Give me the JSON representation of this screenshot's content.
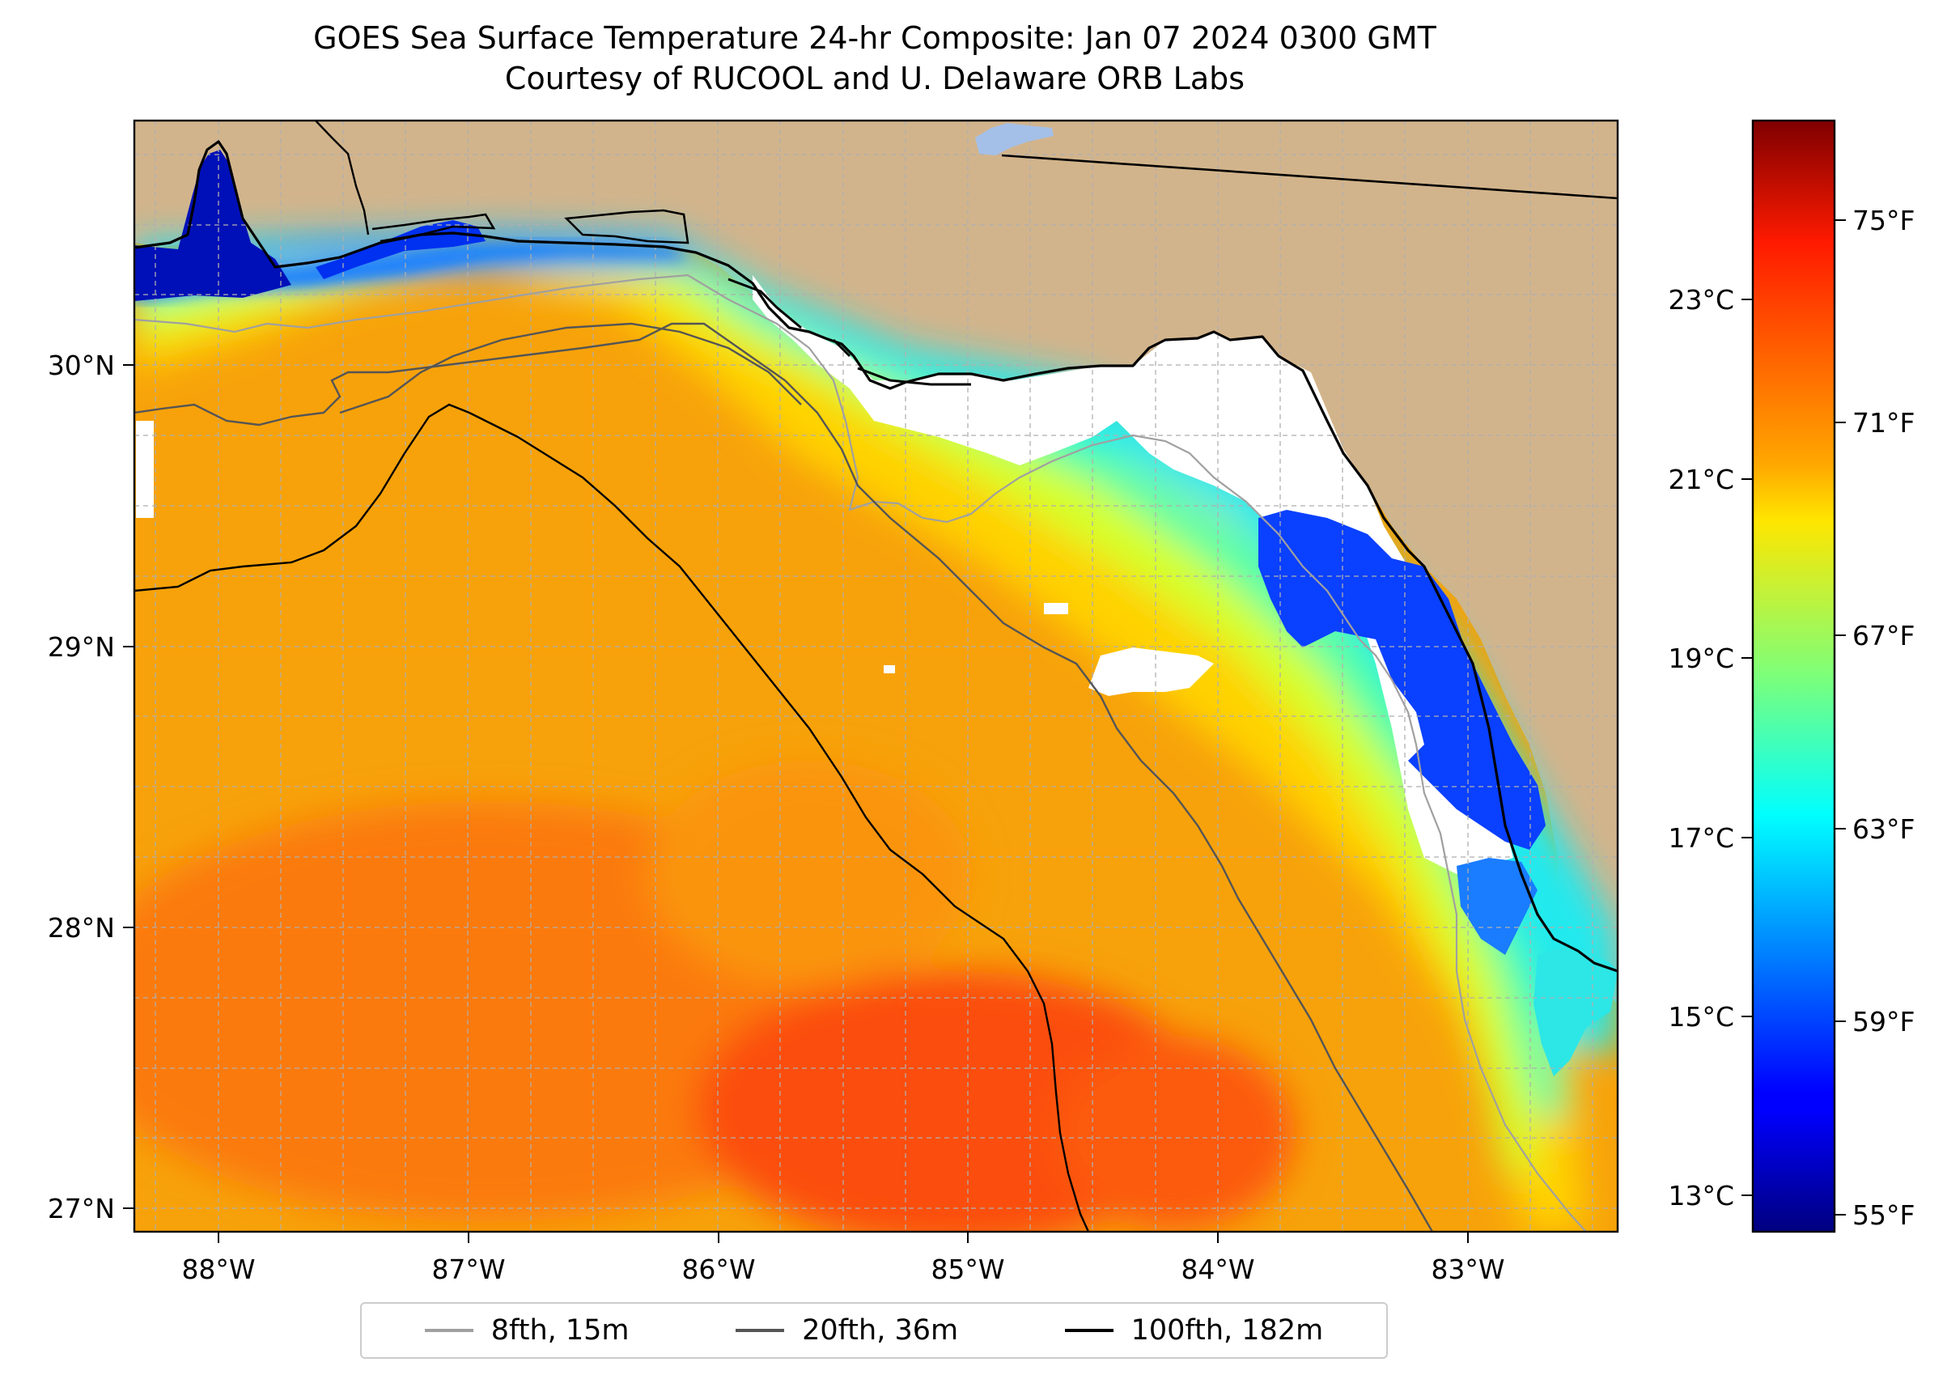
{
  "title": {
    "line1": "GOES Sea Surface Temperature 24-hr Composite: Jan 07 2024 0300 GMT",
    "line2": "Courtesy of RUCOOL and U. Delaware ORB Labs"
  },
  "axes": {
    "lon_range": [
      -88.33,
      -82.4
    ],
    "lat_range": [
      26.93,
      30.87
    ],
    "lon_ticks": [
      {
        "value": -88,
        "label": "88°W"
      },
      {
        "value": -87,
        "label": "87°W"
      },
      {
        "value": -86,
        "label": "86°W"
      },
      {
        "value": -85,
        "label": "85°W"
      },
      {
        "value": -84,
        "label": "84°W"
      },
      {
        "value": -83,
        "label": "83°W"
      }
    ],
    "lat_ticks": [
      {
        "value": 27,
        "label": "27°N"
      },
      {
        "value": 28,
        "label": "28°N"
      },
      {
        "value": 29,
        "label": "29°N"
      },
      {
        "value": 30,
        "label": "30°N"
      }
    ],
    "grid": true
  },
  "colorbar": {
    "colormap": "jet",
    "range_f": [
      54.6,
      77.6
    ],
    "celsius_ticks": [
      {
        "value": 13,
        "label": "13°C"
      },
      {
        "value": 15,
        "label": "15°C"
      },
      {
        "value": 17,
        "label": "17°C"
      },
      {
        "value": 19,
        "label": "19°C"
      },
      {
        "value": 21,
        "label": "21°C"
      },
      {
        "value": 23,
        "label": "23°C"
      }
    ],
    "fahrenheit_ticks": [
      {
        "value": 55,
        "label": "55°F"
      },
      {
        "value": 59,
        "label": "59°F"
      },
      {
        "value": 63,
        "label": "63°F"
      },
      {
        "value": 67,
        "label": "67°F"
      },
      {
        "value": 71,
        "label": "71°F"
      },
      {
        "value": 75,
        "label": "75°F"
      }
    ]
  },
  "legend": [
    {
      "label": "8fth, 15m",
      "color": "#a0a0a0"
    },
    {
      "label": "20fth, 36m",
      "color": "#555555"
    },
    {
      "label": "100fth, 182m",
      "color": "#000000"
    }
  ],
  "colors": {
    "land": "#d2b48c",
    "no_data": "#ffffff",
    "lake": "#a4c0e8",
    "grid": "#b0b0b0"
  }
}
